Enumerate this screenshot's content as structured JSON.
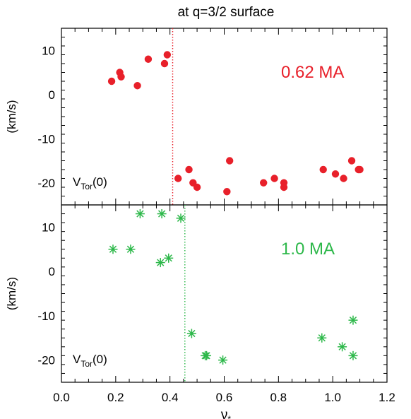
{
  "chart_data": {
    "title": "at q=3/2 surface",
    "xlabel": "ν",
    "xlabel_sub": "*",
    "xlim": [
      0.0,
      1.2
    ],
    "xticks": [
      "0.0",
      "0.2",
      "0.4",
      "0.6",
      "0.8",
      "1.0",
      "1.2"
    ],
    "panels": [
      {
        "type": "scatter",
        "marker": "filled-circle",
        "color": "#e8202a",
        "ylabel": "(km/s)",
        "ylim": [
          -25,
          15
        ],
        "yticks": [
          "10",
          "0",
          "-10",
          "-20"
        ],
        "ytick_values": [
          10,
          0,
          -10,
          -20
        ],
        "label_main": "V",
        "label_sub": "Tor",
        "label_tail": "(0)",
        "annotation": "0.62 MA",
        "vline_x": 0.41,
        "points": [
          [
            0.185,
            3
          ],
          [
            0.215,
            5
          ],
          [
            0.22,
            4
          ],
          [
            0.28,
            2
          ],
          [
            0.32,
            8
          ],
          [
            0.38,
            7
          ],
          [
            0.39,
            9
          ],
          [
            0.43,
            -19
          ],
          [
            0.47,
            -17
          ],
          [
            0.485,
            -20
          ],
          [
            0.5,
            -21
          ],
          [
            0.61,
            -22
          ],
          [
            0.62,
            -15
          ],
          [
            0.745,
            -20
          ],
          [
            0.785,
            -19
          ],
          [
            0.82,
            -21
          ],
          [
            0.82,
            -20
          ],
          [
            0.965,
            -17
          ],
          [
            1.01,
            -18
          ],
          [
            1.04,
            -19
          ],
          [
            1.07,
            -15
          ],
          [
            1.095,
            -17
          ],
          [
            1.1,
            -17
          ]
        ]
      },
      {
        "type": "scatter",
        "marker": "asterisk",
        "color": "#2db84a",
        "ylabel": "(km/s)",
        "ylim": [
          -25,
          15
        ],
        "yticks": [
          "10",
          "0",
          "-10",
          "-20"
        ],
        "ytick_values": [
          10,
          0,
          -10,
          -20
        ],
        "label_main": "V",
        "label_sub": "Tor",
        "label_tail": "(0)",
        "annotation": "1.0 MA",
        "vline_x": 0.455,
        "points": [
          [
            0.19,
            5
          ],
          [
            0.255,
            5
          ],
          [
            0.29,
            13
          ],
          [
            0.37,
            13
          ],
          [
            0.365,
            2
          ],
          [
            0.395,
            3
          ],
          [
            0.44,
            12
          ],
          [
            0.48,
            -14
          ],
          [
            0.53,
            -19
          ],
          [
            0.535,
            -19
          ],
          [
            0.595,
            -20
          ],
          [
            0.96,
            -15
          ],
          [
            1.035,
            -17
          ],
          [
            1.075,
            -11
          ],
          [
            1.075,
            -19
          ]
        ]
      }
    ]
  }
}
